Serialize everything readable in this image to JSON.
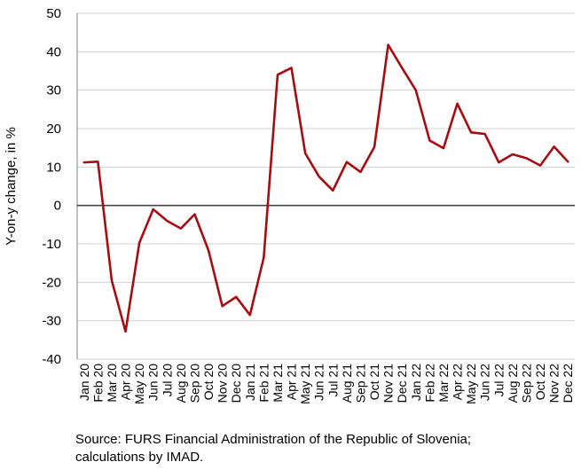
{
  "chart_data": {
    "type": "line",
    "title": "",
    "xlabel": "",
    "ylabel": "Y-on-y change, in %",
    "ylim": [
      -40,
      50
    ],
    "yticks": [
      -40,
      -30,
      -20,
      -10,
      0,
      10,
      20,
      30,
      40,
      50
    ],
    "grid": "horizontal",
    "categories": [
      "Jan 20",
      "Feb 20",
      "Mar 20",
      "Apr 20",
      "May 20",
      "Jun 20",
      "Jul 20",
      "Aug 20",
      "Sep 20",
      "Oct 20",
      "Nov 20",
      "Dec 20",
      "Jan 21",
      "Feb 21",
      "Mar 21",
      "Apr 21",
      "May 21",
      "Jun 21",
      "Jul 21",
      "Aug 21",
      "Sep 21",
      "Oct 21",
      "Nov 21",
      "Dec 21",
      "Jan 22",
      "Feb 22",
      "Mar 22",
      "Apr 22",
      "May 22",
      "Jun 22",
      "Jul 22",
      "Aug 22",
      "Sep 22",
      "Oct 22",
      "Nov 22",
      "Dec 22"
    ],
    "series": [
      {
        "color": "#a50d12",
        "values": [
          11.2,
          11.4,
          -19.5,
          -32.8,
          -9.7,
          -1.0,
          -4.0,
          -6.0,
          -2.3,
          -11.7,
          -26.2,
          -23.8,
          -28.5,
          -13.5,
          34.0,
          35.8,
          13.6,
          7.5,
          3.9,
          11.3,
          8.7,
          15.2,
          41.8,
          35.8,
          30.0,
          16.9,
          14.9,
          26.5,
          19.0,
          18.6,
          11.2,
          13.3,
          12.3,
          10.4,
          15.3,
          11.4
        ]
      }
    ],
    "zero_line_color": "#444444"
  },
  "source": "Source: FURS Financial Administration of the Republic of Slovenia; calculations by IMAD."
}
